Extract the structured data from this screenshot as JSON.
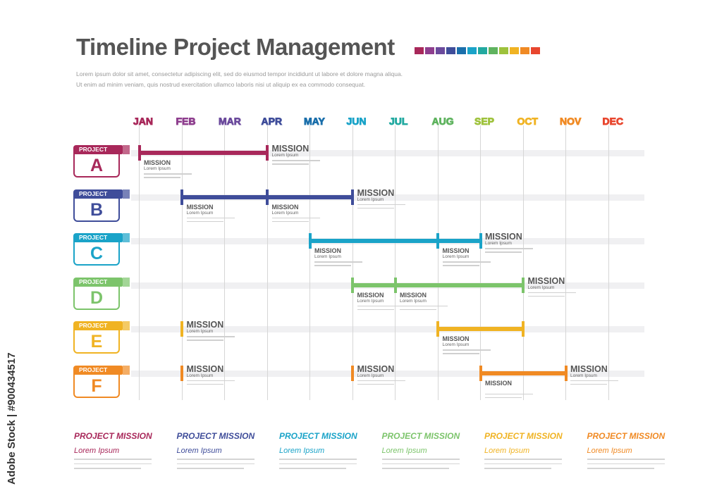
{
  "title": "Timeline Project Management",
  "intro": [
    "Lorem ipsum dolor sit amet, consectetur adipiscing elit, sed do eiusmod tempor incididunt ut labore et dolore magna aliqua.",
    "Ut enim ad minim veniam, quis nostrud exercitation ullamco laboris nisi ut aliquip ex ea commodo consequat."
  ],
  "months": [
    {
      "label": "JAN",
      "color": "#a8285a"
    },
    {
      "label": "FEB",
      "color": "#8e3e8e"
    },
    {
      "label": "MAR",
      "color": "#6b4a9c"
    },
    {
      "label": "APR",
      "color": "#3f4d9a"
    },
    {
      "label": "MAY",
      "color": "#1b6fab"
    },
    {
      "label": "JUN",
      "color": "#1aa3c8"
    },
    {
      "label": "JUL",
      "color": "#22a9a0"
    },
    {
      "label": "AUG",
      "color": "#5fb35f"
    },
    {
      "label": "SEP",
      "color": "#9ec23c"
    },
    {
      "label": "OCT",
      "color": "#f0b323"
    },
    {
      "label": "NOV",
      "color": "#f08a24"
    },
    {
      "label": "DEC",
      "color": "#e8462e"
    }
  ],
  "swatch_colors": [
    "#a8285a",
    "#8e3e8e",
    "#6b4a9c",
    "#3f4d9a",
    "#1b6fab",
    "#1aa3c8",
    "#22a9a0",
    "#5fb35f",
    "#9ec23c",
    "#f0b323",
    "#f08a24",
    "#e8462e"
  ],
  "projects": [
    {
      "tag": "PROJECT",
      "letter": "A",
      "color": "#a8285a",
      "bars": [
        {
          "from": 0,
          "to": 3
        }
      ],
      "marks": [
        {
          "month": 0,
          "label": "MISSION",
          "sub": "Lorem Ipsum",
          "size": "small",
          "pos": "below"
        },
        {
          "month": 3,
          "label": "MISSION",
          "sub": "Lorem Ipsum",
          "size": "big",
          "pos": "above"
        }
      ]
    },
    {
      "tag": "PROJECT",
      "letter": "B",
      "color": "#3f4d9a",
      "bars": [
        {
          "from": 1,
          "to": 5
        }
      ],
      "marks": [
        {
          "month": 1,
          "label": "MISSION",
          "sub": "Lorem Ipsum",
          "size": "small",
          "pos": "below"
        },
        {
          "month": 3,
          "label": "MISSION",
          "sub": "Lorem Ipsum",
          "size": "small",
          "pos": "below"
        },
        {
          "month": 5,
          "label": "MISSION",
          "sub": "Lorem Ipsum",
          "size": "big",
          "pos": "above"
        }
      ]
    },
    {
      "tag": "PROJECT",
      "letter": "C",
      "color": "#1aa3c8",
      "bars": [
        {
          "from": 4,
          "to": 8
        }
      ],
      "marks": [
        {
          "month": 4,
          "label": "MISSION",
          "sub": "Lorem Ipsum",
          "size": "small",
          "pos": "below"
        },
        {
          "month": 7,
          "label": "MISSION",
          "sub": "Lorem Ipsum",
          "size": "small",
          "pos": "below"
        },
        {
          "month": 8,
          "label": "MISSION",
          "sub": "Lorem Ipsum",
          "size": "big",
          "pos": "above"
        }
      ]
    },
    {
      "tag": "PROJECT",
      "letter": "D",
      "color": "#7cc46b",
      "bars": [
        {
          "from": 5,
          "to": 9
        }
      ],
      "marks": [
        {
          "month": 5,
          "label": "MISSION",
          "sub": "Lorem Ipsum",
          "size": "small",
          "pos": "below"
        },
        {
          "month": 6,
          "label": "MISSION",
          "sub": "Lorem Ipsum",
          "size": "small",
          "pos": "below"
        },
        {
          "month": 9,
          "label": "MISSION",
          "sub": "Lorem Ipsum",
          "size": "big",
          "pos": "above"
        }
      ]
    },
    {
      "tag": "PROJECT",
      "letter": "E",
      "color": "#f0b323",
      "bars": [
        {
          "from": 7,
          "to": 9
        }
      ],
      "marks": [
        {
          "month": 1,
          "label": "MISSION",
          "sub": "Lorem Ipsum",
          "size": "big",
          "pos": "above"
        },
        {
          "month": 7,
          "label": "MISSION",
          "sub": "Lorem Ipsum",
          "size": "small",
          "pos": "below"
        },
        {
          "month": 9,
          "label": "",
          "sub": "",
          "size": "small",
          "pos": "none"
        }
      ]
    },
    {
      "tag": "PROJECT",
      "letter": "F",
      "color": "#f08a24",
      "bars": [
        {
          "from": 8,
          "to": 10
        }
      ],
      "marks": [
        {
          "month": 1,
          "label": "MISSION",
          "sub": "Lorem Ipsum",
          "size": "big",
          "pos": "above"
        },
        {
          "month": 5,
          "label": "MISSION",
          "sub": "Lorem Ipsum",
          "size": "big",
          "pos": "above"
        },
        {
          "month": 8,
          "label": "MISSION",
          "sub": "",
          "size": "small",
          "pos": "below"
        },
        {
          "month": 10,
          "label": "MISSION",
          "sub": "Lorem Ipsum",
          "size": "big",
          "pos": "above"
        }
      ]
    }
  ],
  "footer": [
    {
      "title": "PROJECT  MISSION",
      "sub": "Lorem Ipsum",
      "color": "#a8285a"
    },
    {
      "title": "PROJECT  MISSION",
      "sub": "Lorem Ipsum",
      "color": "#3f4d9a"
    },
    {
      "title": "PROJECT  MISSION",
      "sub": "Lorem Ipsum",
      "color": "#1aa3c8"
    },
    {
      "title": "PROJECT  MISSION",
      "sub": "Lorem Ipsum",
      "color": "#7cc46b"
    },
    {
      "title": "PROJECT  MISSION",
      "sub": "Lorem Ipsum",
      "color": "#f0b323"
    },
    {
      "title": "PROJECT  MISSION",
      "sub": "Lorem Ipsum",
      "color": "#f08a24"
    }
  ],
  "stock_id": "Adobe Stock | #900434517"
}
